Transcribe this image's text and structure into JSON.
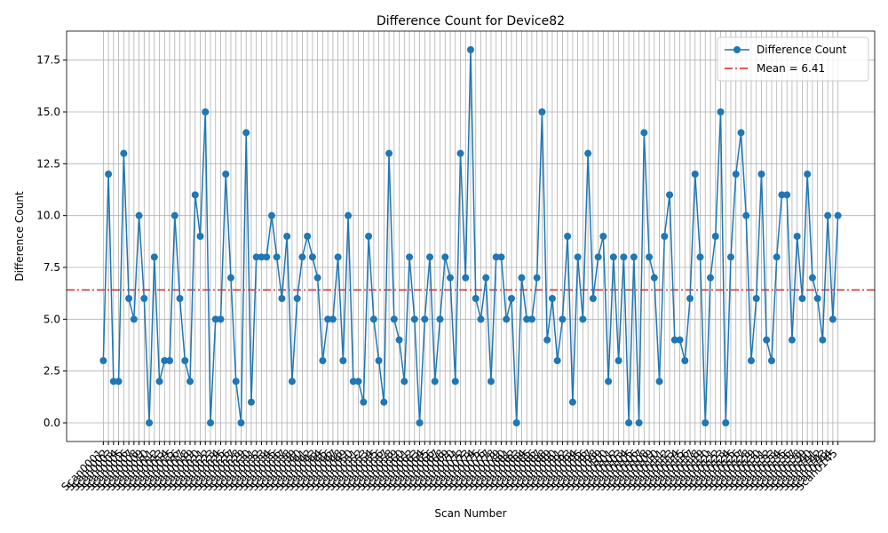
{
  "chart_data": {
    "type": "line",
    "title": "Difference Count for Device82",
    "xlabel": "Scan Number",
    "ylabel": "Difference Count",
    "categories": [
      "Scan0001",
      "Scan0002",
      "Scan0003",
      "Scan0004",
      "Scan0005",
      "Scan0006",
      "Scan0007",
      "Scan0008",
      "Scan0009",
      "Scan0010",
      "Scan0011",
      "Scan0012",
      "Scan0013",
      "Scan0014",
      "Scan0015",
      "Scan0016",
      "Scan0017",
      "Scan0018",
      "Scan0019",
      "Scan0020",
      "Scan0021",
      "Scan0022",
      "Scan0023",
      "Scan0024",
      "Scan0025",
      "Scan0026",
      "Scan0027",
      "Scan0028",
      "Scan0029",
      "Scan0030",
      "Scan0031",
      "Scan0032",
      "Scan0033",
      "Scan0034",
      "Scan0035",
      "Scan0036",
      "Scan0037",
      "Scan0038",
      "Scan0039",
      "Scan0040",
      "Scan0041",
      "Scan0042",
      "Scan0043",
      "Scan0044",
      "Scan0045",
      "Scan0046",
      "Scan0047",
      "Scan0048",
      "Scan0049",
      "Scan0050",
      "Scan0051",
      "Scan0052",
      "Scan0053",
      "Scan0054",
      "Scan0055",
      "Scan0056",
      "Scan0057",
      "Scan0058",
      "Scan0059",
      "Scan0060",
      "Scan0061",
      "Scan0062",
      "Scan0063",
      "Scan0064",
      "Scan0065",
      "Scan0066",
      "Scan0067",
      "Scan0068",
      "Scan0069",
      "Scan0070",
      "Scan0071",
      "Scan0072",
      "Scan0073",
      "Scan0074",
      "Scan0075",
      "Scan0076",
      "Scan0077",
      "Scan0078",
      "Scan0079",
      "Scan0080",
      "Scan0081",
      "Scan0082",
      "Scan0083",
      "Scan0084",
      "Scan0085",
      "Scan0086",
      "Scan0087",
      "Scan0088",
      "Scan0089",
      "Scan0090",
      "Scan0091",
      "Scan0092",
      "Scan0093",
      "Scan0094",
      "Scan0095",
      "Scan0096",
      "Scan0097",
      "Scan0098",
      "Scan0099",
      "Scan0100",
      "Scan0101",
      "Scan0102",
      "Scan0103",
      "Scan0104",
      "Scan0105",
      "Scan0106",
      "Scan0107",
      "Scan0108",
      "Scan0109",
      "Scan0110",
      "Scan0111",
      "Scan0112",
      "Scan0113",
      "Scan0114",
      "Scan0115",
      "Scan0116",
      "Scan0117",
      "Scan0118",
      "Scan0119",
      "Scan0120",
      "Scan0121",
      "Scan0122",
      "Scan0123",
      "Scan0124",
      "Scan0125",
      "Scan0126",
      "Scan0127",
      "Scan0128",
      "Scan0129",
      "Scan0130",
      "Scan0131",
      "Scan0132",
      "Scan0133",
      "Scan0134",
      "Scan0135",
      "Scan0136",
      "Scan0137",
      "Scan0138",
      "Scan0139",
      "Scan0140",
      "Scan0141",
      "Scan0142",
      "Scan0143",
      "Scan0144",
      "Scan0145"
    ],
    "series": [
      {
        "name": "Difference Count",
        "color": "#1f77b4",
        "values": [
          3,
          12,
          2,
          2,
          13,
          6,
          5,
          10,
          6,
          0,
          8,
          2,
          3,
          3,
          10,
          6,
          3,
          2,
          11,
          9,
          15,
          0,
          5,
          5,
          12,
          7,
          2,
          0,
          14,
          1,
          8,
          8,
          8,
          10,
          8,
          6,
          9,
          2,
          6,
          8,
          9,
          8,
          7,
          3,
          5,
          5,
          8,
          3,
          10,
          2,
          2,
          1,
          9,
          5,
          3,
          1,
          13,
          5,
          4,
          2,
          8,
          5,
          0,
          5,
          8,
          2,
          5,
          8,
          7,
          2,
          13,
          7,
          18,
          6,
          5,
          7,
          2,
          8,
          8,
          5,
          6,
          0,
          7,
          5,
          5,
          7,
          15,
          4,
          6,
          3,
          5,
          9,
          1,
          8,
          5,
          13,
          6,
          8,
          9,
          2,
          8,
          3,
          8,
          0,
          8,
          0,
          14,
          8,
          7,
          2,
          9,
          11,
          4,
          4,
          3,
          6,
          12,
          8,
          0,
          7,
          9,
          15,
          0,
          8,
          12,
          14,
          10,
          3,
          6,
          12,
          4,
          3,
          8,
          11,
          11,
          4,
          9,
          6,
          12,
          7,
          6,
          4,
          10,
          5,
          10
        ]
      }
    ],
    "hlines": [
      {
        "name": "Mean = 6.41",
        "value": 6.41,
        "color": "#d62728"
      }
    ],
    "ylim": [
      -0.9,
      18.9
    ],
    "yticks": [
      {
        "value": 0,
        "label": "0.0"
      },
      {
        "value": 2.5,
        "label": "2.5"
      },
      {
        "value": 5,
        "label": "5.0"
      },
      {
        "value": 7.5,
        "label": "7.5"
      },
      {
        "value": 10,
        "label": "10.0"
      },
      {
        "value": 12.5,
        "label": "12.5"
      },
      {
        "value": 15,
        "label": "15.0"
      },
      {
        "value": 17.5,
        "label": "17.5"
      }
    ],
    "grid": true,
    "legend": "upper right"
  }
}
